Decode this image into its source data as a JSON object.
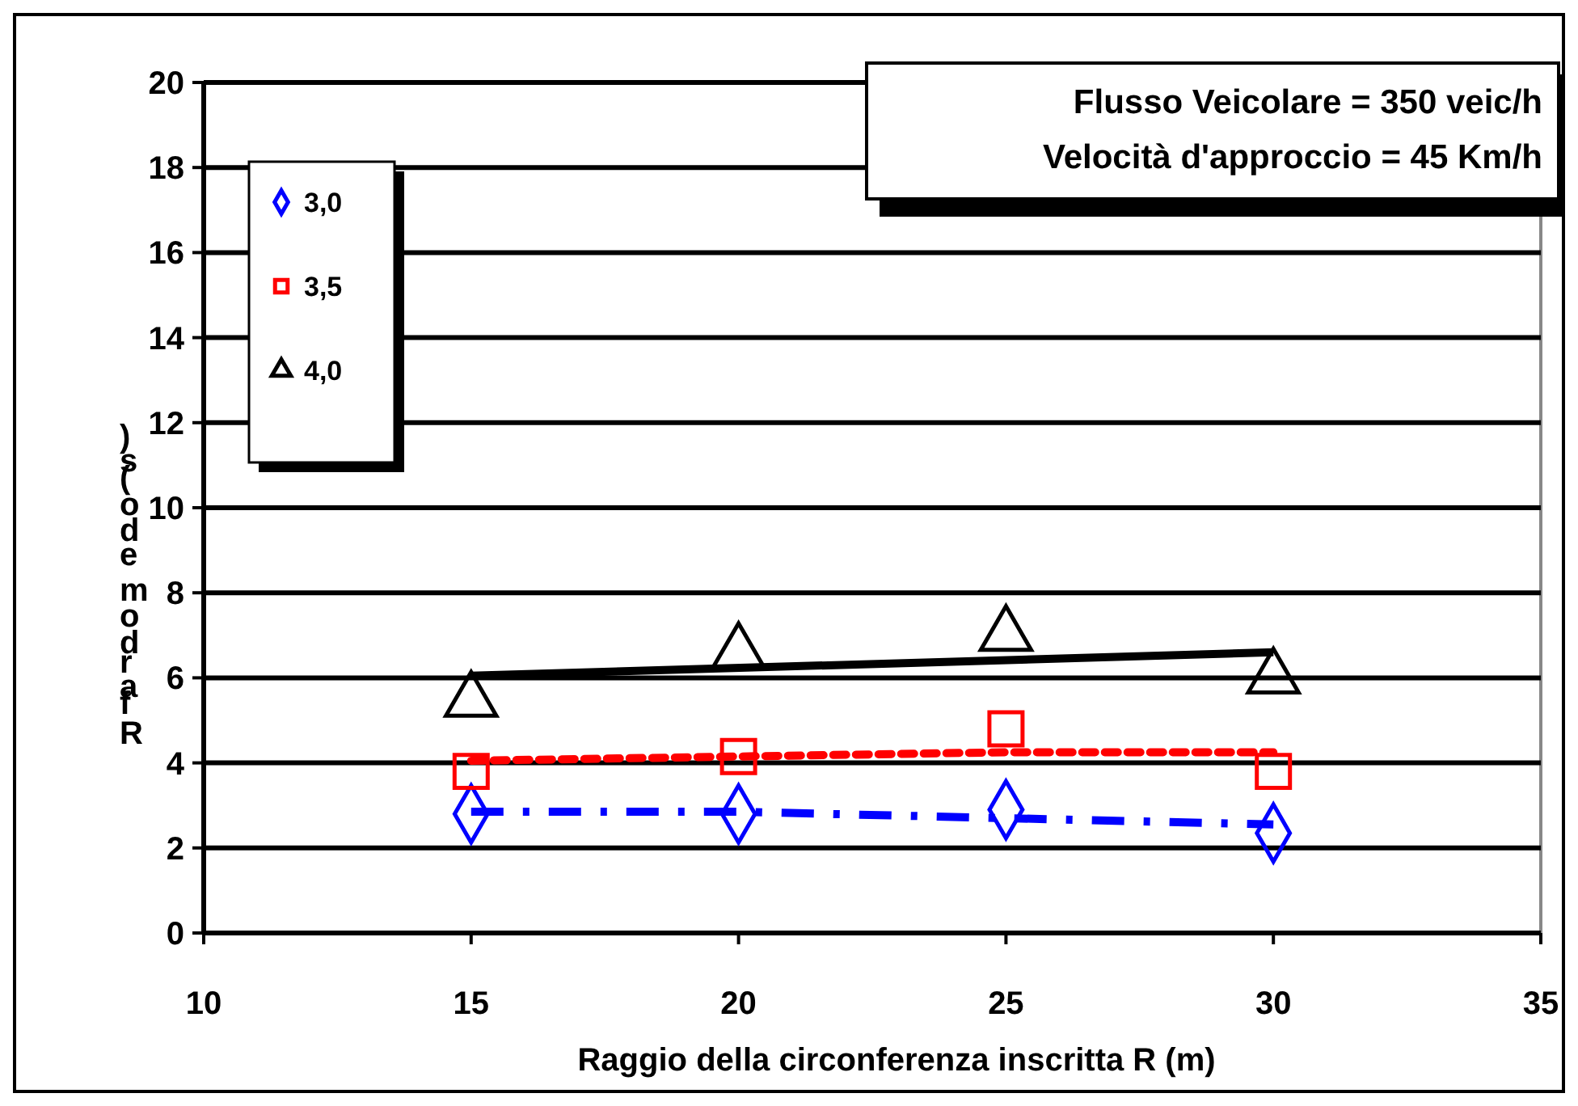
{
  "chart_data": {
    "type": "scatter",
    "xlabel": "Raggio della circonferenza inscritta  R (m)",
    "ylabel": "Rfardomedo(s)",
    "annotations": [
      "Flusso Veicolare = 350 veic/h",
      "Velocità d'approccio = 45 Km/h"
    ],
    "x": [
      15,
      20,
      25,
      30
    ],
    "series": [
      {
        "name": "3,0",
        "type": "scatter",
        "marker": "diamond",
        "color": "#0000ff",
        "values": [
          2.8,
          2.8,
          2.9,
          2.35
        ]
      },
      {
        "name": "3,5",
        "type": "scatter",
        "marker": "square",
        "color": "#ff0000",
        "values": [
          3.8,
          4.15,
          4.8,
          3.8
        ]
      },
      {
        "name": "4,0",
        "type": "scatter",
        "marker": "triangle",
        "color": "#000000",
        "values": [
          5.45,
          6.6,
          7.0,
          6.0
        ]
      },
      {
        "type": "line",
        "line_style": "dashdot",
        "color": "#0000ff",
        "x": [
          15,
          20,
          25,
          30
        ],
        "values": [
          2.85,
          2.85,
          2.7,
          2.55
        ]
      },
      {
        "type": "line",
        "line_style": "dotted",
        "color": "#ff0000",
        "x": [
          15,
          20,
          25,
          30
        ],
        "values": [
          4.05,
          4.15,
          4.25,
          4.25
        ]
      },
      {
        "type": "line",
        "line_style": "solid",
        "color": "#000000",
        "x": [
          15,
          30
        ],
        "values": [
          6.05,
          6.6
        ]
      }
    ],
    "xlim": [
      10,
      35
    ],
    "xticks": [
      10,
      15,
      20,
      25,
      30,
      35
    ],
    "ylim": [
      0,
      20
    ],
    "yticks": [
      0,
      2,
      4,
      6,
      8,
      10,
      12,
      14,
      16,
      18,
      20
    ],
    "grid": "y",
    "legend": "top left"
  }
}
